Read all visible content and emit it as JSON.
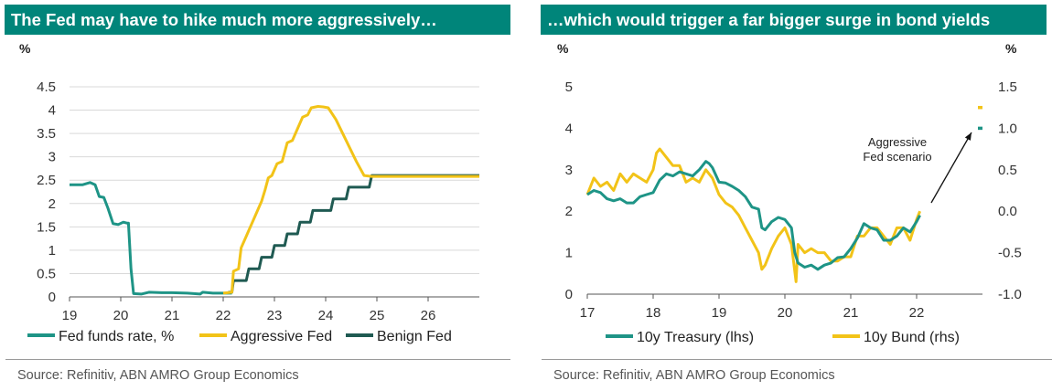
{
  "colors": {
    "title_bg": "#00857a",
    "fed_funds": "#1e9486",
    "aggressive": "#f2c318",
    "benign": "#1f5a52",
    "treasury": "#1e9486",
    "bund": "#f2c318"
  },
  "chart_data": [
    {
      "type": "line",
      "title": "The Fed may have to hike much more aggressively…",
      "ylabel": "%",
      "ylim": [
        0,
        4.5
      ],
      "yticks": [
        "0",
        "0.5",
        "1",
        "1.5",
        "2",
        "2.5",
        "3",
        "3.5",
        "4",
        "4.5"
      ],
      "xlim": [
        2019,
        2027
      ],
      "xticks": [
        "19",
        "20",
        "21",
        "22",
        "23",
        "24",
        "25",
        "26"
      ],
      "grid": "horizontal",
      "legend": "bottom",
      "source": "Source: Refinitiv, ABN AMRO Group Economics",
      "series": [
        {
          "name": "Fed funds rate, %",
          "color_key": "fed_funds",
          "points": [
            [
              2019.0,
              2.4
            ],
            [
              2019.25,
              2.4
            ],
            [
              2019.4,
              2.45
            ],
            [
              2019.5,
              2.4
            ],
            [
              2019.58,
              2.15
            ],
            [
              2019.67,
              2.13
            ],
            [
              2019.75,
              1.9
            ],
            [
              2019.85,
              1.57
            ],
            [
              2019.95,
              1.55
            ],
            [
              2020.05,
              1.6
            ],
            [
              2020.12,
              1.58
            ],
            [
              2020.15,
              1.58
            ],
            [
              2020.2,
              0.6
            ],
            [
              2020.25,
              0.07
            ],
            [
              2020.4,
              0.06
            ],
            [
              2020.55,
              0.1
            ],
            [
              2020.8,
              0.09
            ],
            [
              2021.0,
              0.09
            ],
            [
              2021.3,
              0.08
            ],
            [
              2021.55,
              0.06
            ],
            [
              2021.6,
              0.1
            ],
            [
              2021.8,
              0.08
            ],
            [
              2022.0,
              0.08
            ],
            [
              2022.17,
              0.08
            ]
          ]
        },
        {
          "name": "Aggressive Fed",
          "color_key": "aggressive",
          "points": [
            [
              2022.0,
              0.08
            ],
            [
              2022.17,
              0.1
            ],
            [
              2022.2,
              0.55
            ],
            [
              2022.3,
              0.6
            ],
            [
              2022.35,
              1.05
            ],
            [
              2022.45,
              1.3
            ],
            [
              2022.55,
              1.55
            ],
            [
              2022.65,
              1.8
            ],
            [
              2022.75,
              2.05
            ],
            [
              2022.82,
              2.3
            ],
            [
              2022.88,
              2.55
            ],
            [
              2022.95,
              2.6
            ],
            [
              2023.05,
              2.85
            ],
            [
              2023.15,
              2.9
            ],
            [
              2023.25,
              3.3
            ],
            [
              2023.35,
              3.35
            ],
            [
              2023.45,
              3.6
            ],
            [
              2023.55,
              3.85
            ],
            [
              2023.65,
              3.9
            ],
            [
              2023.72,
              4.05
            ],
            [
              2023.85,
              4.08
            ],
            [
              2023.95,
              4.07
            ],
            [
              2024.05,
              4.05
            ],
            [
              2024.2,
              3.8
            ],
            [
              2024.4,
              3.35
            ],
            [
              2024.6,
              2.9
            ],
            [
              2024.75,
              2.6
            ],
            [
              2024.9,
              2.58
            ],
            [
              2027.0,
              2.58
            ]
          ]
        },
        {
          "name": "Benign Fed",
          "color_key": "benign",
          "points": [
            [
              2022.1,
              0.1
            ],
            [
              2022.17,
              0.1
            ],
            [
              2022.2,
              0.35
            ],
            [
              2022.45,
              0.35
            ],
            [
              2022.5,
              0.6
            ],
            [
              2022.7,
              0.6
            ],
            [
              2022.75,
              0.85
            ],
            [
              2022.95,
              0.85
            ],
            [
              2023.0,
              1.1
            ],
            [
              2023.2,
              1.1
            ],
            [
              2023.25,
              1.35
            ],
            [
              2023.45,
              1.35
            ],
            [
              2023.5,
              1.6
            ],
            [
              2023.7,
              1.6
            ],
            [
              2023.75,
              1.85
            ],
            [
              2024.1,
              1.85
            ],
            [
              2024.15,
              2.1
            ],
            [
              2024.4,
              2.1
            ],
            [
              2024.45,
              2.35
            ],
            [
              2024.85,
              2.35
            ],
            [
              2024.9,
              2.6
            ],
            [
              2027.0,
              2.6
            ]
          ]
        }
      ]
    },
    {
      "type": "line",
      "title": "…which would trigger a far bigger surge in bond yields",
      "ylabel_left": "%",
      "ylabel_right": "%",
      "ylim_left": [
        0,
        5
      ],
      "ylim_right": [
        -1.0,
        1.5
      ],
      "yticks_left": [
        "0",
        "1",
        "2",
        "3",
        "4",
        "5"
      ],
      "yticks_right": [
        "-1.0",
        "-0.5",
        "0.0",
        "0.5",
        "1.0",
        "1.5"
      ],
      "xlim": [
        2017,
        2023
      ],
      "xticks": [
        "17",
        "18",
        "19",
        "20",
        "21",
        "22"
      ],
      "grid": "none",
      "legend": "bottom",
      "annotation": [
        "Aggressive",
        "Fed scenario"
      ],
      "source": "Source: Refinitiv, ABN AMRO Group Economics",
      "series": [
        {
          "name": "10y Treasury (lhs)",
          "axis": "left",
          "color_key": "treasury",
          "points": [
            [
              2017.0,
              2.4
            ],
            [
              2017.1,
              2.5
            ],
            [
              2017.2,
              2.45
            ],
            [
              2017.3,
              2.3
            ],
            [
              2017.4,
              2.25
            ],
            [
              2017.5,
              2.3
            ],
            [
              2017.6,
              2.2
            ],
            [
              2017.7,
              2.2
            ],
            [
              2017.8,
              2.35
            ],
            [
              2017.9,
              2.4
            ],
            [
              2018.0,
              2.45
            ],
            [
              2018.1,
              2.75
            ],
            [
              2018.2,
              2.9
            ],
            [
              2018.3,
              2.85
            ],
            [
              2018.4,
              2.95
            ],
            [
              2018.5,
              2.9
            ],
            [
              2018.6,
              2.85
            ],
            [
              2018.7,
              3.0
            ],
            [
              2018.8,
              3.2
            ],
            [
              2018.85,
              3.15
            ],
            [
              2018.9,
              3.05
            ],
            [
              2019.0,
              2.7
            ],
            [
              2019.1,
              2.68
            ],
            [
              2019.2,
              2.6
            ],
            [
              2019.3,
              2.5
            ],
            [
              2019.4,
              2.35
            ],
            [
              2019.5,
              2.1
            ],
            [
              2019.6,
              2.05
            ],
            [
              2019.65,
              1.6
            ],
            [
              2019.7,
              1.55
            ],
            [
              2019.8,
              1.75
            ],
            [
              2019.9,
              1.85
            ],
            [
              2020.0,
              1.8
            ],
            [
              2020.1,
              1.6
            ],
            [
              2020.15,
              1.0
            ],
            [
              2020.2,
              0.75
            ],
            [
              2020.3,
              0.65
            ],
            [
              2020.4,
              0.7
            ],
            [
              2020.5,
              0.6
            ],
            [
              2020.6,
              0.7
            ],
            [
              2020.7,
              0.75
            ],
            [
              2020.8,
              0.88
            ],
            [
              2020.9,
              0.9
            ],
            [
              2021.0,
              1.1
            ],
            [
              2021.1,
              1.35
            ],
            [
              2021.2,
              1.7
            ],
            [
              2021.3,
              1.6
            ],
            [
              2021.4,
              1.55
            ],
            [
              2021.5,
              1.3
            ],
            [
              2021.6,
              1.3
            ],
            [
              2021.7,
              1.4
            ],
            [
              2021.8,
              1.6
            ],
            [
              2021.9,
              1.5
            ],
            [
              2022.0,
              1.75
            ],
            [
              2022.05,
              1.9
            ]
          ]
        },
        {
          "name": "10y Bund (rhs)",
          "axis": "right",
          "color_key": "bund",
          "points": [
            [
              2017.0,
              0.2
            ],
            [
              2017.1,
              0.4
            ],
            [
              2017.2,
              0.3
            ],
            [
              2017.3,
              0.35
            ],
            [
              2017.4,
              0.25
            ],
            [
              2017.5,
              0.45
            ],
            [
              2017.6,
              0.35
            ],
            [
              2017.7,
              0.45
            ],
            [
              2017.8,
              0.4
            ],
            [
              2017.9,
              0.35
            ],
            [
              2018.0,
              0.5
            ],
            [
              2018.05,
              0.7
            ],
            [
              2018.1,
              0.75
            ],
            [
              2018.2,
              0.65
            ],
            [
              2018.3,
              0.55
            ],
            [
              2018.4,
              0.55
            ],
            [
              2018.5,
              0.35
            ],
            [
              2018.6,
              0.4
            ],
            [
              2018.7,
              0.35
            ],
            [
              2018.8,
              0.5
            ],
            [
              2018.9,
              0.4
            ],
            [
              2019.0,
              0.2
            ],
            [
              2019.1,
              0.1
            ],
            [
              2019.2,
              0.05
            ],
            [
              2019.3,
              -0.05
            ],
            [
              2019.4,
              -0.2
            ],
            [
              2019.5,
              -0.35
            ],
            [
              2019.6,
              -0.5
            ],
            [
              2019.65,
              -0.7
            ],
            [
              2019.7,
              -0.65
            ],
            [
              2019.8,
              -0.45
            ],
            [
              2019.9,
              -0.3
            ],
            [
              2020.0,
              -0.2
            ],
            [
              2020.1,
              -0.4
            ],
            [
              2020.17,
              -0.85
            ],
            [
              2020.2,
              -0.4
            ],
            [
              2020.3,
              -0.5
            ],
            [
              2020.4,
              -0.45
            ],
            [
              2020.5,
              -0.5
            ],
            [
              2020.6,
              -0.5
            ],
            [
              2020.7,
              -0.6
            ],
            [
              2020.8,
              -0.6
            ],
            [
              2020.9,
              -0.55
            ],
            [
              2021.0,
              -0.55
            ],
            [
              2021.1,
              -0.3
            ],
            [
              2021.2,
              -0.3
            ],
            [
              2021.3,
              -0.2
            ],
            [
              2021.4,
              -0.2
            ],
            [
              2021.5,
              -0.3
            ],
            [
              2021.6,
              -0.4
            ],
            [
              2021.7,
              -0.2
            ],
            [
              2021.8,
              -0.2
            ],
            [
              2021.9,
              -0.35
            ],
            [
              2022.0,
              -0.1
            ],
            [
              2022.05,
              0.0
            ]
          ]
        },
        {
          "name": "",
          "axis": "right",
          "color_key": "bund",
          "marker": "dash",
          "points": [
            [
              2022.93,
              1.25
            ],
            [
              2023.0,
              1.25
            ]
          ]
        },
        {
          "name": "",
          "axis": "left",
          "color_key": "treasury",
          "marker": "dash",
          "points": [
            [
              2022.93,
              4.0
            ],
            [
              2023.0,
              4.0
            ]
          ]
        }
      ]
    }
  ]
}
